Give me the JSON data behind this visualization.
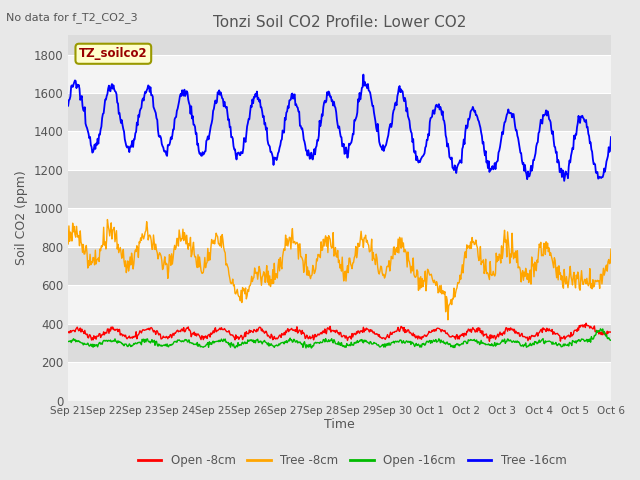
{
  "title": "Tonzi Soil CO2 Profile: Lower CO2",
  "no_data_label": "No data for f_T2_CO2_3",
  "ylabel": "Soil CO2 (ppm)",
  "xlabel": "Time",
  "ylim": [
    0,
    1900
  ],
  "yticks": [
    0,
    200,
    400,
    600,
    800,
    1000,
    1200,
    1400,
    1600,
    1800
  ],
  "xtick_labels": [
    "Sep 21",
    "Sep 22",
    "Sep 23",
    "Sep 24",
    "Sep 25",
    "Sep 26",
    "Sep 27",
    "Sep 28",
    "Sep 29",
    "Sep 30",
    "Oct 1",
    "Oct 2",
    "Oct 3",
    "Oct 4",
    "Oct 5",
    "Oct 6"
  ],
  "n_xticks": 16,
  "legend_entries": [
    "Open -8cm",
    "Tree -8cm",
    "Open -16cm",
    "Tree -16cm"
  ],
  "legend_colors": [
    "#ff0000",
    "#ffa500",
    "#00bb00",
    "#0000ff"
  ],
  "line_colors": {
    "open_8cm": "#ff0000",
    "tree_8cm": "#ffa500",
    "open_16cm": "#00bb00",
    "tree_16cm": "#0000ff"
  },
  "annotation_label": "TZ_soilco2",
  "annotation_text_color": "#990000",
  "annotation_bg": "#ffffcc",
  "annotation_edge": "#999900",
  "bg_color": "#e8e8e8",
  "band_light": "#f4f4f4",
  "band_dark": "#dcdcdc",
  "title_color": "#555555",
  "label_color": "#555555",
  "tick_color": "#555555",
  "figsize": [
    6.4,
    4.8
  ],
  "dpi": 100
}
